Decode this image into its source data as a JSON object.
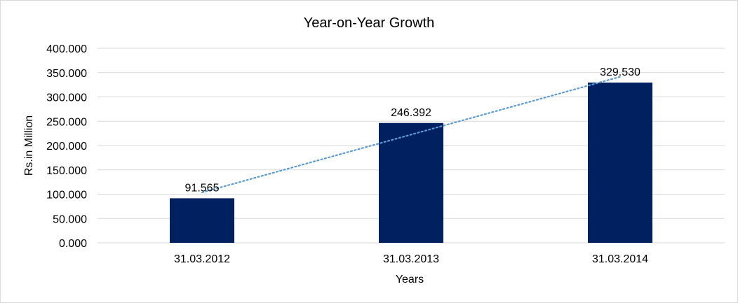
{
  "chart_data": {
    "type": "bar",
    "title": "Year-on-Year Growth",
    "xlabel": "Years",
    "ylabel": "Rs.in Million",
    "categories": [
      "31.03.2012",
      "31.03.2013",
      "31.03.2014"
    ],
    "values": [
      91.565,
      246.392,
      329.53
    ],
    "data_labels": [
      "91.565",
      "246.392",
      "329.530"
    ],
    "ylim": [
      0,
      400
    ],
    "yticks": [
      0,
      50,
      100,
      150,
      200,
      250,
      300,
      350,
      400
    ],
    "ytick_labels": [
      "0.000",
      "50.000",
      "100.000",
      "150.000",
      "200.000",
      "250.000",
      "300.000",
      "350.000",
      "400.000"
    ],
    "grid": true,
    "trendline": {
      "type": "linear",
      "style": "dotted"
    },
    "colors": {
      "bar": "#002060",
      "trendline": "#5B9BD5",
      "grid": "#d9d9d9"
    }
  }
}
